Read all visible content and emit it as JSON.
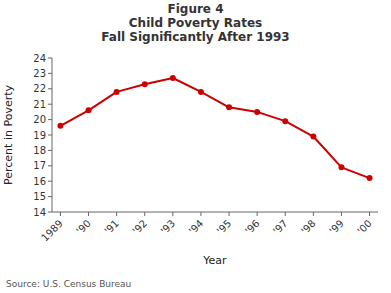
{
  "chart_data": {
    "type": "line",
    "title": "Figure 4\nChild Poverty Rates\nFall Significantly After 1993",
    "x_label": "Year",
    "y_label": "Percent in Poverty",
    "annotations": [
      "Source: U.S. Census Bureau"
    ],
    "x": [
      1989,
      1990,
      1991,
      1992,
      1993,
      1994,
      1995,
      1996,
      1997,
      1998,
      1999,
      2000
    ],
    "values": [
      19.6,
      20.6,
      21.8,
      22.3,
      22.7,
      21.8,
      20.8,
      20.5,
      19.9,
      18.9,
      16.9,
      16.2
    ],
    "color": "#cc0000",
    "marker": "circle",
    "xlim": [
      1988.7,
      2000.3
    ],
    "xticks": [
      1989,
      {
        "value": 1990,
        "label": "'90"
      },
      {
        "value": 1991,
        "label": "'91"
      },
      {
        "value": 1992,
        "label": "'92"
      },
      {
        "value": 1993,
        "label": "'93"
      },
      {
        "value": 1994,
        "label": "'94"
      },
      {
        "value": 1995,
        "label": "'95"
      },
      {
        "value": 1996,
        "label": "'96"
      },
      {
        "value": 1997,
        "label": "'97"
      },
      {
        "value": 1998,
        "label": "'98"
      },
      {
        "value": 1999,
        "label": "'99"
      },
      {
        "value": 2000,
        "label": "'00"
      }
    ],
    "ylim": [
      14,
      24
    ],
    "yticks": [
      14,
      15,
      16,
      17,
      18,
      19,
      20,
      21,
      22,
      23,
      24
    ],
    "grid": false
  }
}
